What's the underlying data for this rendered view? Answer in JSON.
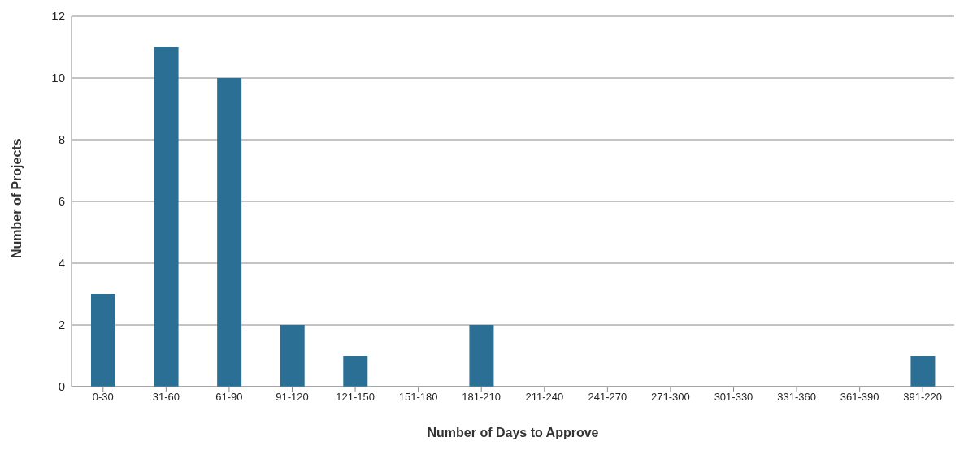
{
  "chart_data": {
    "type": "bar",
    "xlabel": "Number of Days to Approve",
    "ylabel": "Number of Projects",
    "categories": [
      "0-30",
      "31-60",
      "61-90",
      "91-120",
      "121-150",
      "151-180",
      "181-210",
      "211-240",
      "241-270",
      "271-300",
      "301-330",
      "331-360",
      "361-390",
      "391-220"
    ],
    "values": [
      3,
      11,
      10,
      2,
      1,
      0,
      2,
      0,
      0,
      0,
      0,
      0,
      0,
      1
    ],
    "color": "#2c6f94",
    "ylim": [
      0,
      12
    ],
    "yticks": [
      0,
      2,
      4,
      6,
      8,
      10,
      12
    ],
    "grid": "y"
  }
}
